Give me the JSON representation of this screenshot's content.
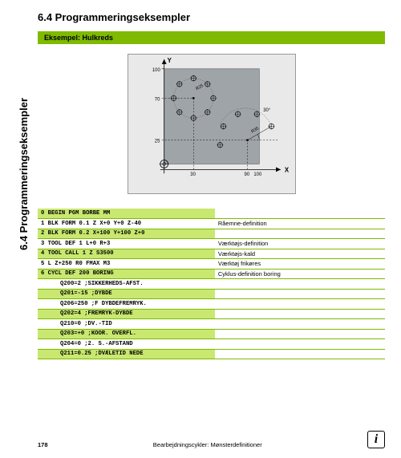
{
  "sidebar_text": "6.4 Programmeringseksempler",
  "heading": "6.4   Programmeringseksempler",
  "example_label": "Eksempel: Hulkreds",
  "diagram": {
    "bg_color": "#e9e9e9",
    "rect_color": "#9fa4a8",
    "axis_labels": {
      "x": "X",
      "y": "Y"
    },
    "y_ticks": [
      "100",
      "70",
      "25"
    ],
    "x_ticks": [
      "30",
      "90",
      "100"
    ],
    "angle_label": "30°",
    "radius_labels": [
      "R25",
      "R35"
    ]
  },
  "code_rows": [
    {
      "code": "0 BEGIN PGM BORBE MM",
      "desc": "",
      "highlight": true,
      "indent": false
    },
    {
      "code": "1 BLK FORM 0.1 Z X+0 Y+0 Z-40",
      "desc": "Råemne-definition",
      "highlight": false,
      "indent": false
    },
    {
      "code": "2 BLK FORM 0.2 X+100 Y+100 Z+0",
      "desc": "",
      "highlight": true,
      "indent": false
    },
    {
      "code": "3 TOOL DEF 1 L+0 R+3",
      "desc": "Værktøjs-definition",
      "highlight": false,
      "indent": false
    },
    {
      "code": "4 TOOL CALL 1 Z S3500",
      "desc": "Værktøjs-kald",
      "highlight": true,
      "indent": false
    },
    {
      "code": "5 L Z+250 R0 FMAX M3",
      "desc": "Værktøj frikøres",
      "highlight": false,
      "indent": false
    },
    {
      "code": "6 CYCL DEF 200 BORING",
      "desc": "Cyklus-definition boring",
      "highlight": true,
      "indent": false
    },
    {
      "code": "Q200=2   ;SIKKERHEDS-AFST.",
      "desc": "",
      "highlight": false,
      "indent": true
    },
    {
      "code": "Q201=-15 ;DYBDE",
      "desc": "",
      "highlight": true,
      "indent": true
    },
    {
      "code": "Q206=250 ;F DYBDEFREMRYK.",
      "desc": "",
      "highlight": false,
      "indent": true
    },
    {
      "code": "Q202=4   ;FREMRYK-DYBDE",
      "desc": "",
      "highlight": true,
      "indent": true
    },
    {
      "code": "Q210=0   ;DV.-TID",
      "desc": "",
      "highlight": false,
      "indent": true
    },
    {
      "code": "Q203=+0  ;KOOR. OVERFL.",
      "desc": "",
      "highlight": true,
      "indent": true
    },
    {
      "code": "Q204=0   ;2. S.-AFSTAND",
      "desc": "",
      "highlight": false,
      "indent": true
    },
    {
      "code": "Q211=0.25 ;DVÆLETID NEDE",
      "desc": "",
      "highlight": true,
      "indent": true
    }
  ],
  "footer": {
    "page": "178",
    "caption": "Bearbejdningscykler: Mønsterdefinitioner",
    "info_glyph": "i"
  }
}
